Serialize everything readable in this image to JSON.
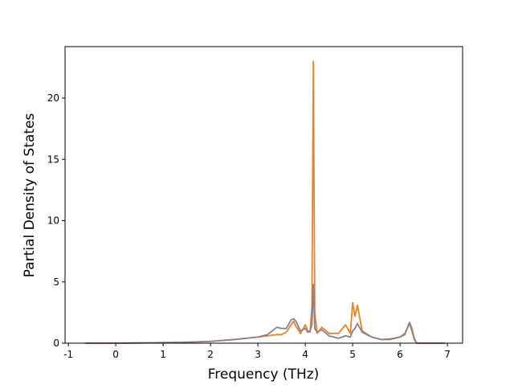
{
  "chart_data": {
    "type": "line",
    "xlabel": "Frequency (THz)",
    "ylabel": "Partial Density of States",
    "x": [
      -0.65,
      0.0,
      0.5,
      1.0,
      1.5,
      2.0,
      2.5,
      3.0,
      3.2,
      3.4,
      3.5,
      3.6,
      3.7,
      3.75,
      3.8,
      3.9,
      4.0,
      4.05,
      4.1,
      4.14,
      4.17,
      4.2,
      4.25,
      4.35,
      4.5,
      4.7,
      4.85,
      4.95,
      5.0,
      5.05,
      5.1,
      5.2,
      5.4,
      5.6,
      5.8,
      6.0,
      6.1,
      6.2,
      6.25,
      6.3,
      6.35,
      6.95
    ],
    "series": [
      {
        "color": "#e8822a",
        "values": [
          0,
          0,
          0.02,
          0.05,
          0.08,
          0.15,
          0.3,
          0.5,
          0.6,
          0.7,
          0.7,
          0.9,
          1.5,
          1.8,
          1.4,
          0.8,
          1.5,
          1.0,
          0.9,
          3.0,
          23.0,
          2.5,
          0.8,
          1.3,
          0.8,
          0.8,
          1.5,
          0.8,
          3.3,
          2.2,
          3.1,
          1.0,
          0.5,
          0.3,
          0.3,
          0.5,
          0.8,
          1.6,
          1.0,
          0.3,
          0,
          0
        ]
      },
      {
        "color": "#8a7f8e",
        "values": [
          0,
          0,
          0.02,
          0.05,
          0.08,
          0.15,
          0.3,
          0.5,
          0.7,
          1.3,
          1.2,
          1.2,
          1.9,
          2.0,
          1.8,
          1.0,
          1.2,
          0.9,
          1.0,
          1.5,
          4.8,
          1.2,
          0.9,
          1.1,
          0.6,
          0.4,
          0.6,
          0.5,
          1.0,
          1.2,
          1.6,
          0.9,
          0.5,
          0.3,
          0.35,
          0.5,
          0.7,
          1.7,
          1.2,
          0.4,
          0,
          0
        ]
      }
    ],
    "xlim": [
      -1.07,
      7.32
    ],
    "xticks": [
      -1,
      0,
      1,
      2,
      3,
      4,
      5,
      6,
      7
    ],
    "ylim": [
      0,
      24.2
    ],
    "yticks": [
      0,
      5,
      10,
      15,
      20
    ]
  }
}
